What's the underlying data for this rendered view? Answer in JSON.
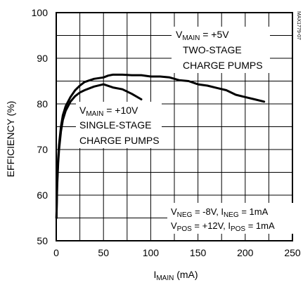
{
  "chart_data": {
    "type": "line",
    "code": "MAX1779-07",
    "ylabel": "EFFICIENCY (%)",
    "xlabel": {
      "main": "I",
      "sub": "MAIN",
      "unit": " (mA)"
    },
    "xlim": [
      0,
      250
    ],
    "ylim": [
      50,
      100
    ],
    "x_ticks": [
      "0",
      "50",
      "100",
      "150",
      "200",
      "250"
    ],
    "y_ticks": [
      "50",
      "60",
      "70",
      "80",
      "90",
      "100"
    ],
    "grid": true,
    "series": [
      {
        "x": [
          0.2,
          1,
          2,
          3,
          5,
          7,
          10,
          15,
          20,
          25,
          30,
          40,
          50,
          55,
          60,
          70,
          80,
          90,
          100,
          110,
          120,
          130,
          140,
          150,
          160,
          170,
          180,
          190,
          200,
          210,
          220
        ],
        "y": [
          55,
          63,
          68,
          71,
          75,
          77.5,
          79.5,
          81.5,
          83,
          84,
          84.8,
          85.5,
          85.8,
          86.2,
          86.4,
          86.4,
          86.3,
          86.3,
          86,
          86,
          85.8,
          85.2,
          85,
          84.3,
          84,
          83.5,
          83,
          82,
          81.5,
          81,
          80.5
        ]
      },
      {
        "x": [
          0.2,
          1,
          2,
          3,
          5,
          7,
          10,
          15,
          20,
          25,
          30,
          40,
          50,
          60,
          70,
          80,
          90
        ],
        "y": [
          55,
          62,
          67,
          70,
          74,
          76.5,
          78.5,
          80.5,
          81.7,
          82.5,
          83,
          83.8,
          84.3,
          83.6,
          83.2,
          82.2,
          81
        ]
      }
    ],
    "annotations": [
      {
        "id": "main-5v",
        "line1": {
          "a": "V",
          "sub": "MAIN",
          "b": " = +5V"
        },
        "line2": "TWO-STAGE",
        "line3": "CHARGE PUMPS"
      },
      {
        "id": "main-10v",
        "line1": {
          "a": "V",
          "sub": "MAIN",
          "b": " = +10V"
        },
        "line2": "SINGLE-STAGE",
        "line3": "CHARGE PUMPS"
      },
      {
        "id": "conditions",
        "line1": {
          "a": "V",
          "sub1": "NEG",
          "b": " = -8V, I",
          "sub2": "NEG",
          "c": " = 1mA"
        },
        "line2": {
          "a": "V",
          "sub1": "POS",
          "b": " = +12V, I",
          "sub2": "POS",
          "c": " = 1mA"
        }
      }
    ]
  }
}
